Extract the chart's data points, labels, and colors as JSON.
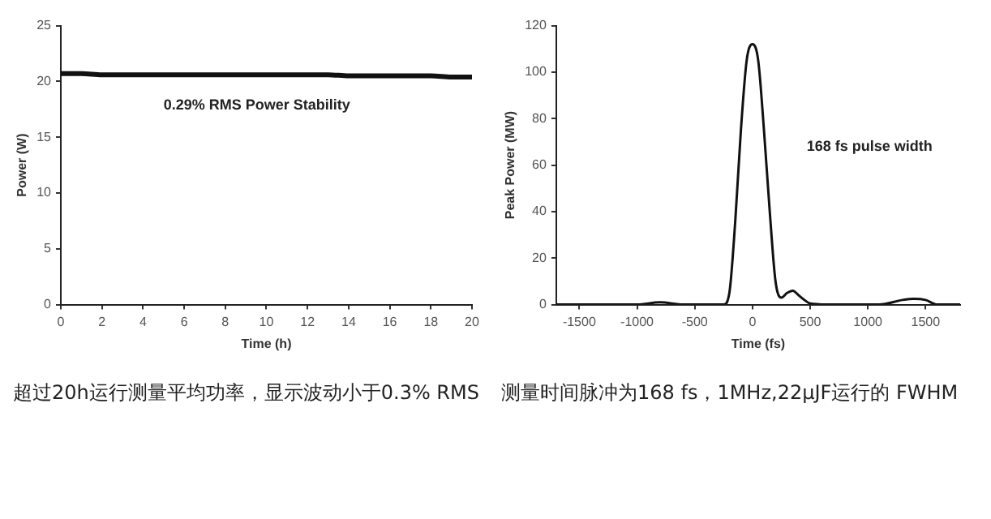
{
  "chart_data": [
    {
      "type": "line",
      "xlabel": "Time (h)",
      "ylabel": "Power (W)",
      "x": [
        0,
        1,
        2,
        3,
        4,
        5,
        6,
        7,
        8,
        9,
        10,
        11,
        12,
        13,
        14,
        15,
        16,
        17,
        18,
        19,
        20
      ],
      "series": [
        {
          "color": "#111111",
          "values": [
            20.7,
            20.7,
            20.6,
            20.6,
            20.6,
            20.6,
            20.6,
            20.6,
            20.6,
            20.6,
            20.6,
            20.6,
            20.6,
            20.6,
            20.5,
            20.5,
            20.5,
            20.5,
            20.5,
            20.4,
            20.4
          ]
        }
      ],
      "xlim": [
        0,
        20
      ],
      "xticks": [
        0,
        2,
        4,
        6,
        8,
        10,
        12,
        14,
        16,
        18,
        20
      ],
      "ylim": [
        0,
        25
      ],
      "yticks": [
        0,
        5,
        10,
        15,
        20,
        25
      ],
      "grid": false,
      "legend": false,
      "marker": "none",
      "line_style": "solid",
      "annotations": [
        "0.29% RMS Power Stability",
        "超过20h运行测量平均功率，显示波动小于0.3% RMS"
      ]
    },
    {
      "type": "line",
      "xlabel": "Time (fs)",
      "ylabel": "Peak Power (MW)",
      "x": [
        -1700,
        -1000,
        -800,
        -600,
        -250,
        -200,
        -150,
        -100,
        -50,
        0,
        50,
        100,
        150,
        200,
        250,
        300,
        350,
        400,
        450,
        500,
        700,
        1100,
        1300,
        1400,
        1500,
        1600,
        1800
      ],
      "series": [
        {
          "color": "#111111",
          "values": [
            0,
            0,
            1,
            0,
            0,
            5,
            35,
            75,
            105,
            112,
            105,
            75,
            40,
            10,
            3,
            5,
            6,
            4,
            2,
            0.5,
            0,
            0,
            2,
            2.5,
            2,
            0,
            0
          ]
        }
      ],
      "xlim": [
        -1700,
        1800
      ],
      "xticks": [
        -1500,
        -1000,
        -500,
        0,
        500,
        1000,
        1500
      ],
      "ylim": [
        0,
        120
      ],
      "yticks": [
        0,
        20,
        40,
        60,
        80,
        100,
        120
      ],
      "grid": false,
      "legend": false,
      "marker": "none",
      "line_style": "solid",
      "annotations": [
        "168 fs pulse width",
        "测量时间脉冲为168  fs，1MHz,22μJF运行的  FWHM"
      ]
    }
  ]
}
